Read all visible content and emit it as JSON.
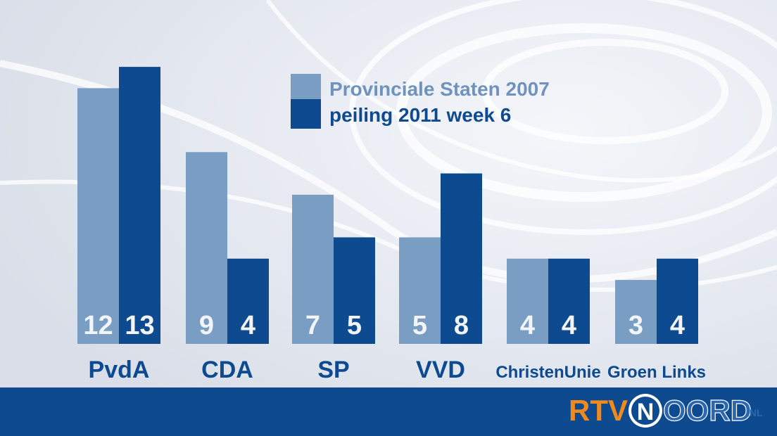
{
  "chart_data": {
    "type": "bar",
    "categories": [
      "PvdA",
      "CDA",
      "SP",
      "VVD",
      "ChristenUnie",
      "Groen Links"
    ],
    "series": [
      {
        "name": "Provinciale Staten 2007",
        "values": [
          12,
          9,
          7,
          5,
          4,
          3
        ],
        "color": "#7a9dc4"
      },
      {
        "name": "peiling 2011 week 6",
        "values": [
          13,
          4,
          5,
          8,
          4,
          4
        ],
        "color": "#0d4a8f"
      }
    ],
    "title": "",
    "xlabel": "",
    "ylabel": "",
    "ylim": [
      0,
      13
    ],
    "grid": false,
    "legend": "top-center"
  },
  "logo": {
    "part1": "RTV",
    "part2": "N",
    "part3": "OORD",
    "suffix": ".NL"
  },
  "colors": {
    "background": "#e3e7ef",
    "series_light": "#7a9dc4",
    "series_dark": "#0d4a8f",
    "footer": "#0d4a8f",
    "logo_orange": "#f08a1c"
  }
}
